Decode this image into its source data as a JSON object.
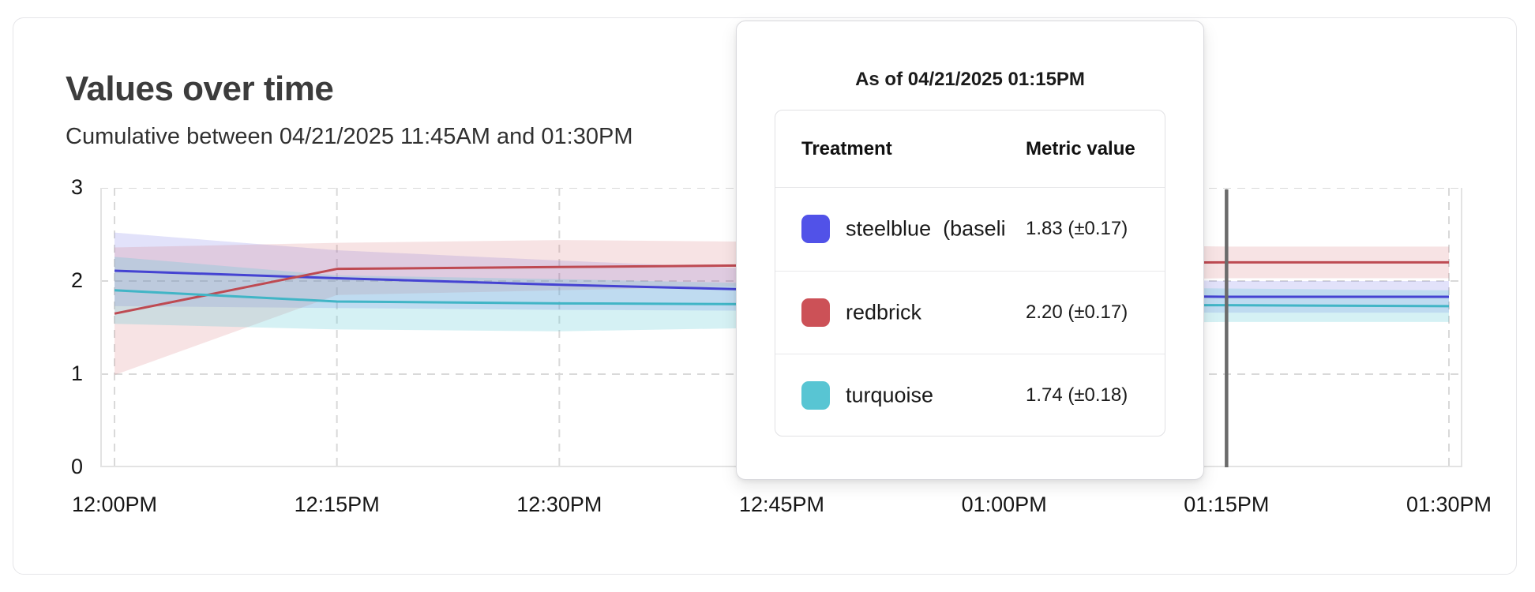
{
  "card": {
    "title": "Values over time",
    "subtitle": "Cumulative between 04/21/2025 11:45AM and 01:30PM"
  },
  "tooltip": {
    "title": "As of 04/21/2025 01:15PM",
    "columns": {
      "treatment": "Treatment",
      "metric": "Metric value"
    },
    "rows": [
      {
        "swatch_color": "#5152e8",
        "label": "steelblue  (baseli",
        "value": "1.83 (±0.17)"
      },
      {
        "swatch_color": "#cc5157",
        "label": "redbrick",
        "value": "2.20 (±0.17)"
      },
      {
        "swatch_color": "#58c5d3",
        "label": "turquoise",
        "value": "1.74 (±0.18)"
      }
    ]
  },
  "chart_data": {
    "type": "line",
    "x": [
      "12:00PM",
      "12:15PM",
      "12:30PM",
      "12:45PM",
      "01:00PM",
      "01:15PM",
      "01:30PM"
    ],
    "y_ticks": [
      0,
      1,
      2,
      3
    ],
    "ylim": [
      0,
      3
    ],
    "grid": true,
    "legend_position": "tooltip",
    "cursor_x": "01:15PM",
    "series": [
      {
        "name": "steelblue (baseline)",
        "line_color": "#4543d2",
        "band_color": "rgba(92,92,228,0.18)",
        "values": [
          2.11,
          2.03,
          1.96,
          1.9,
          1.86,
          1.83,
          1.83
        ],
        "band_lower": [
          1.73,
          1.71,
          1.69,
          1.68,
          1.67,
          1.66,
          1.66
        ],
        "band_upper": [
          2.52,
          2.33,
          2.22,
          2.12,
          2.05,
          2.0,
          2.0
        ]
      },
      {
        "name": "redbrick",
        "line_color": "#be4a52",
        "band_color": "rgba(207,86,94,0.17)",
        "values": [
          1.65,
          2.13,
          2.15,
          2.17,
          2.19,
          2.2,
          2.2
        ],
        "band_lower": [
          0.99,
          1.85,
          1.9,
          1.95,
          2.0,
          2.03,
          2.03
        ],
        "band_upper": [
          2.36,
          2.41,
          2.44,
          2.42,
          2.4,
          2.37,
          2.37
        ]
      },
      {
        "name": "turquoise",
        "line_color": "#41b5c6",
        "band_color": "rgba(94,200,213,0.26)",
        "values": [
          1.9,
          1.78,
          1.76,
          1.75,
          1.74,
          1.74,
          1.73
        ],
        "band_lower": [
          1.54,
          1.48,
          1.46,
          1.5,
          1.54,
          1.56,
          1.56
        ],
        "band_upper": [
          2.26,
          2.06,
          2.02,
          1.97,
          1.94,
          1.92,
          1.9
        ]
      }
    ],
    "style": {
      "grid_color": "#d9d9d9",
      "border_color": "#e3e3e3",
      "cursor_color": "#6b6b6b"
    }
  }
}
